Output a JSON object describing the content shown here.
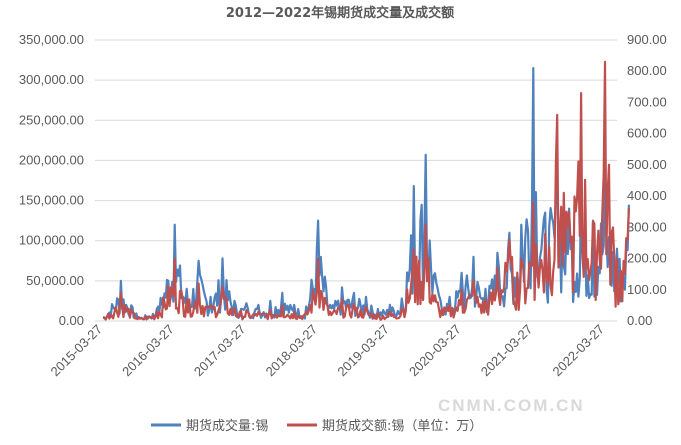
{
  "chart_data": {
    "type": "line",
    "title": "2012—2022年锡期货成交量及成交额",
    "x_labels": [
      "2015-03-27",
      "2016-03-27",
      "2017-03-27",
      "2018-03-27",
      "2019-03-27",
      "2020-03-27",
      "2021-03-27",
      "2022-03-27"
    ],
    "y_left": {
      "ticks": [
        "0.00",
        "50,000.00",
        "100,000.00",
        "150,000.00",
        "200,000.00",
        "250,000.00",
        "300,000.00",
        "350,000.00"
      ],
      "ylim": [
        0,
        350000
      ]
    },
    "y_right": {
      "ticks": [
        "0.00",
        "100.00",
        "200.00",
        "300.00",
        "400.00",
        "500.00",
        "600.00",
        "700.00",
        "800.00",
        "900.00"
      ],
      "ylim": [
        0,
        900
      ]
    },
    "grid": "horizontal",
    "legend_position": "bottom",
    "series": [
      {
        "name": "期货成交量:锡",
        "axis": "left",
        "color": "#4f81bd",
        "x": [
          "2015-03",
          "2015-06",
          "2015-09",
          "2015-12",
          "2016-03",
          "2016-05",
          "2016-07",
          "2016-09",
          "2016-11",
          "2017-01",
          "2017-03",
          "2017-05",
          "2017-07",
          "2017-09",
          "2017-11",
          "2018-01",
          "2018-03",
          "2018-05",
          "2018-07",
          "2018-09",
          "2018-11",
          "2019-01",
          "2019-03",
          "2019-05",
          "2019-07",
          "2019-09",
          "2019-11",
          "2020-01",
          "2020-03",
          "2020-05",
          "2020-07",
          "2020-09",
          "2020-11",
          "2021-01",
          "2021-03",
          "2021-05",
          "2021-07",
          "2021-09",
          "2021-11",
          "2022-01",
          "2022-03",
          "2022-05",
          "2022-07"
        ],
        "values": [
          5000,
          50000,
          5000,
          15000,
          120000,
          40000,
          75000,
          30000,
          78000,
          25000,
          22000,
          20000,
          25000,
          35000,
          20000,
          18000,
          125000,
          20000,
          42000,
          35000,
          30000,
          15000,
          20000,
          28000,
          168000,
          207000,
          40000,
          30000,
          60000,
          80000,
          40000,
          85000,
          110000,
          120000,
          315000,
          135000,
          205000,
          140000,
          165000,
          125000,
          190000,
          90000,
          145000
        ]
      },
      {
        "name": "期货成交额:锡（单位：万）",
        "axis": "right",
        "color": "#c0504d",
        "x": [
          "2015-03",
          "2015-06",
          "2015-09",
          "2015-12",
          "2016-03",
          "2016-05",
          "2016-07",
          "2016-09",
          "2016-11",
          "2017-01",
          "2017-03",
          "2017-05",
          "2017-07",
          "2017-09",
          "2017-11",
          "2018-01",
          "2018-03",
          "2018-05",
          "2018-07",
          "2018-09",
          "2018-11",
          "2019-01",
          "2019-03",
          "2019-05",
          "2019-07",
          "2019-09",
          "2019-11",
          "2020-01",
          "2020-03",
          "2020-05",
          "2020-07",
          "2020-09",
          "2020-11",
          "2021-01",
          "2021-03",
          "2021-05",
          "2021-07",
          "2021-09",
          "2021-11",
          "2022-01",
          "2022-03",
          "2022-05",
          "2022-07"
        ],
        "values": [
          10,
          90,
          10,
          30,
          200,
          70,
          120,
          50,
          110,
          40,
          35,
          30,
          35,
          50,
          30,
          30,
          200,
          30,
          70,
          55,
          45,
          25,
          30,
          40,
          230,
          310,
          60,
          50,
          100,
          130,
          70,
          170,
          260,
          200,
          380,
          280,
          660,
          350,
          730,
          320,
          830,
          200,
          360
        ]
      }
    ]
  },
  "watermark": "CNMN.COM.CN"
}
